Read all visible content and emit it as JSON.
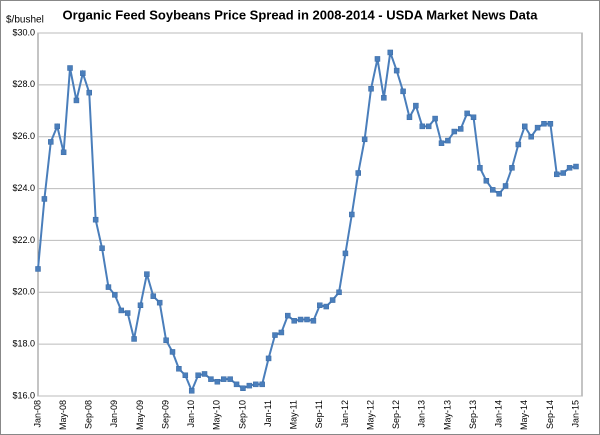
{
  "chart_data": {
    "type": "line",
    "title": "Organic Feed Soybeans Price Spread in 2008-2014 - USDA Market News Data",
    "y_label": "$/bushel",
    "color": "#4a7ebb",
    "grid": true,
    "categories": [
      "Jan-08",
      null,
      null,
      null,
      "May-08",
      null,
      null,
      null,
      "Sep-08",
      null,
      null,
      null,
      "Jan-09",
      null,
      null,
      null,
      "May-09",
      null,
      null,
      null,
      "Sep-09",
      null,
      null,
      null,
      "Jan-10",
      null,
      null,
      null,
      "May-10",
      null,
      null,
      null,
      "Sep-10",
      null,
      null,
      null,
      "Jan-11",
      null,
      null,
      null,
      "May-11",
      null,
      null,
      null,
      "Sep-11",
      null,
      null,
      null,
      "Jan-12",
      null,
      null,
      null,
      "May-12",
      null,
      null,
      null,
      "Sep-12",
      null,
      null,
      null,
      "Jan-13",
      null,
      null,
      null,
      "May-13",
      null,
      null,
      null,
      "Sep-13",
      null,
      null,
      null,
      "Jan-14",
      null,
      null,
      null,
      "May-14",
      null,
      null,
      null,
      "Sep-14",
      null,
      null,
      null,
      "Jan-15"
    ],
    "values": [
      20.9,
      23.6,
      25.8,
      26.4,
      25.4,
      28.65,
      27.4,
      28.45,
      27.7,
      22.8,
      21.7,
      20.2,
      19.9,
      19.3,
      19.2,
      18.2,
      19.5,
      20.7,
      19.85,
      19.6,
      18.15,
      17.7,
      17.05,
      16.8,
      16.2,
      16.8,
      16.85,
      16.65,
      16.55,
      16.65,
      16.65,
      16.45,
      16.3,
      16.4,
      16.45,
      16.45,
      17.45,
      18.35,
      18.45,
      19.1,
      18.9,
      18.95,
      18.95,
      18.9,
      19.5,
      19.45,
      19.7,
      20.0,
      21.5,
      23.0,
      24.6,
      25.9,
      27.85,
      29.0,
      27.5,
      29.25,
      28.55,
      27.75,
      26.75,
      27.2,
      26.4,
      26.4,
      26.7,
      25.75,
      25.85,
      26.2,
      26.3,
      26.9,
      26.75,
      24.8,
      24.3,
      23.95,
      23.8,
      24.1,
      24.8,
      25.7,
      26.4,
      26.0,
      26.35,
      26.5,
      26.5,
      24.55,
      24.6,
      24.8,
      24.85
    ],
    "ylim": [
      16,
      30
    ],
    "yticks": [
      {
        "value": 16,
        "label": "$16.0"
      },
      {
        "value": 18,
        "label": "$18.0"
      },
      {
        "value": 20,
        "label": "$20.0"
      },
      {
        "value": 22,
        "label": "$22.0"
      },
      {
        "value": 24,
        "label": "$24.0"
      },
      {
        "value": 26,
        "label": "$26.0"
      },
      {
        "value": 28,
        "label": "$28.0"
      },
      {
        "value": 30,
        "label": "$30.0"
      }
    ]
  }
}
